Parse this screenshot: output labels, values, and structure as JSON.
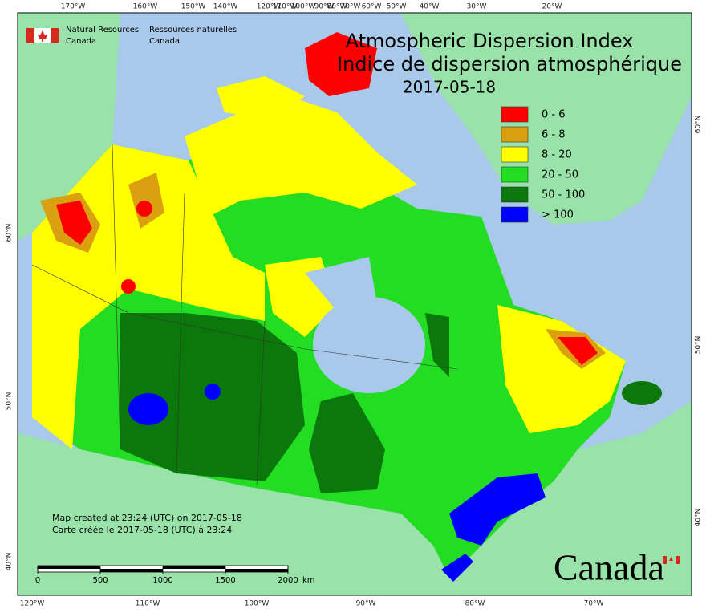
{
  "header": {
    "agency_en": [
      "Natural Resources",
      "Canada"
    ],
    "agency_fr": [
      "Ressources naturelles",
      "Canada"
    ]
  },
  "map": {
    "title": "Atmospheric Dispersion Index",
    "subtitle": "Indice de dispersion atmosphérique",
    "date": "2017-05-18",
    "legend": [
      {
        "label": "0 - 6",
        "color": "#ff0000"
      },
      {
        "label": "6 - 8",
        "color": "#dba010"
      },
      {
        "label": "8 - 20",
        "color": "#ffff00"
      },
      {
        "label": "20 - 50",
        "color": "#22dd22"
      },
      {
        "label": "50 - 100",
        "color": "#0a780a"
      },
      {
        "label": "> 100",
        "color": "#0000ff"
      }
    ],
    "top_labels": [
      "170°W",
      "160°W",
      "150°W",
      "140°W",
      "120°W",
      "110°W",
      "100°W",
      "90°W",
      "80°W",
      "70°W",
      "60°W",
      "50°W",
      "40°W",
      "30°W",
      "20°W"
    ],
    "bottom_labels": [
      "120°W",
      "110°W",
      "100°W",
      "90°W",
      "80°W",
      "70°W"
    ],
    "left_labels": [
      "60°N",
      "50°N",
      "40°N"
    ],
    "right_labels": [
      "60°N",
      "50°N",
      "40°N"
    ],
    "credits": [
      "Map created at 23:24 (UTC) on 2017-05-18",
      "Carte créée le 2017-05-18 (UTC) à 23:24"
    ],
    "scale": {
      "ticks": [
        0,
        500,
        1000,
        1500,
        2000
      ],
      "unit": "km"
    },
    "wordmark": "Canada"
  }
}
